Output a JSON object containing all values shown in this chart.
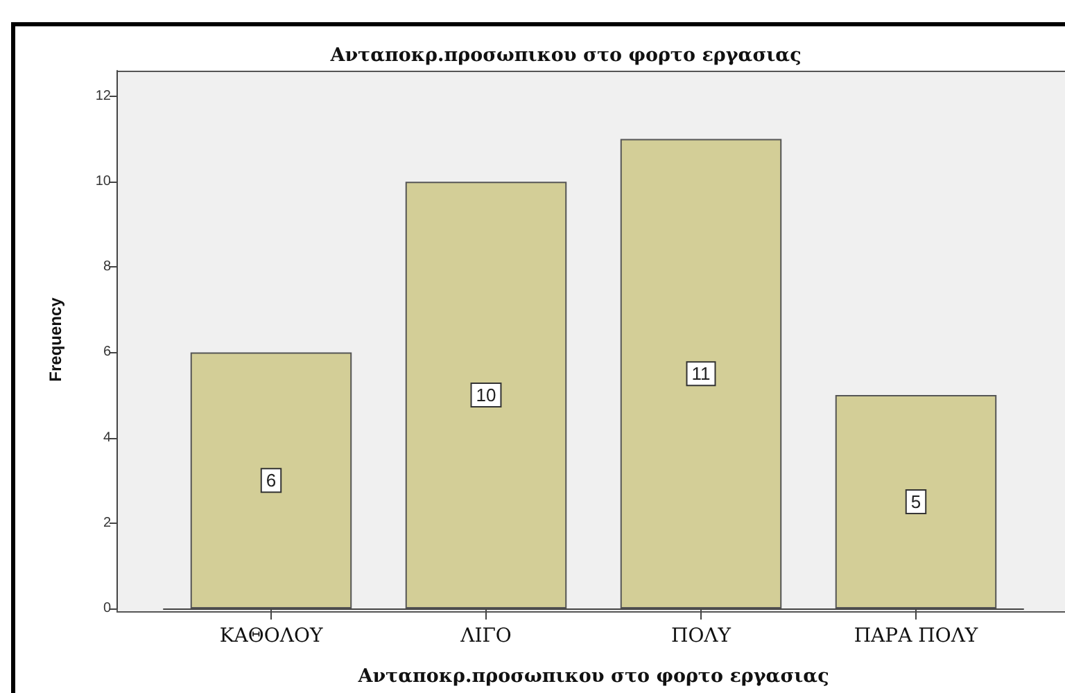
{
  "chart_data": {
    "type": "bar",
    "title": "Ανταποκρ.προσωπικου στο φορτο εργασιας",
    "xlabel": "Ανταποκρ.προσωπικου στο φορτο εργασιας",
    "ylabel": "Frequency",
    "categories": [
      "ΚΑΘΟΛΟΥ",
      "ΛΙΓΟ",
      "ΠΟΛΥ",
      "ΠΑΡΑ ΠΟΛΥ"
    ],
    "values": [
      6,
      10,
      11,
      5
    ],
    "color": "#d3ce97",
    "ylim": [
      0,
      12.6
    ],
    "yticks": [
      0,
      2,
      4,
      6,
      8,
      10,
      12
    ],
    "data_labels": true
  }
}
